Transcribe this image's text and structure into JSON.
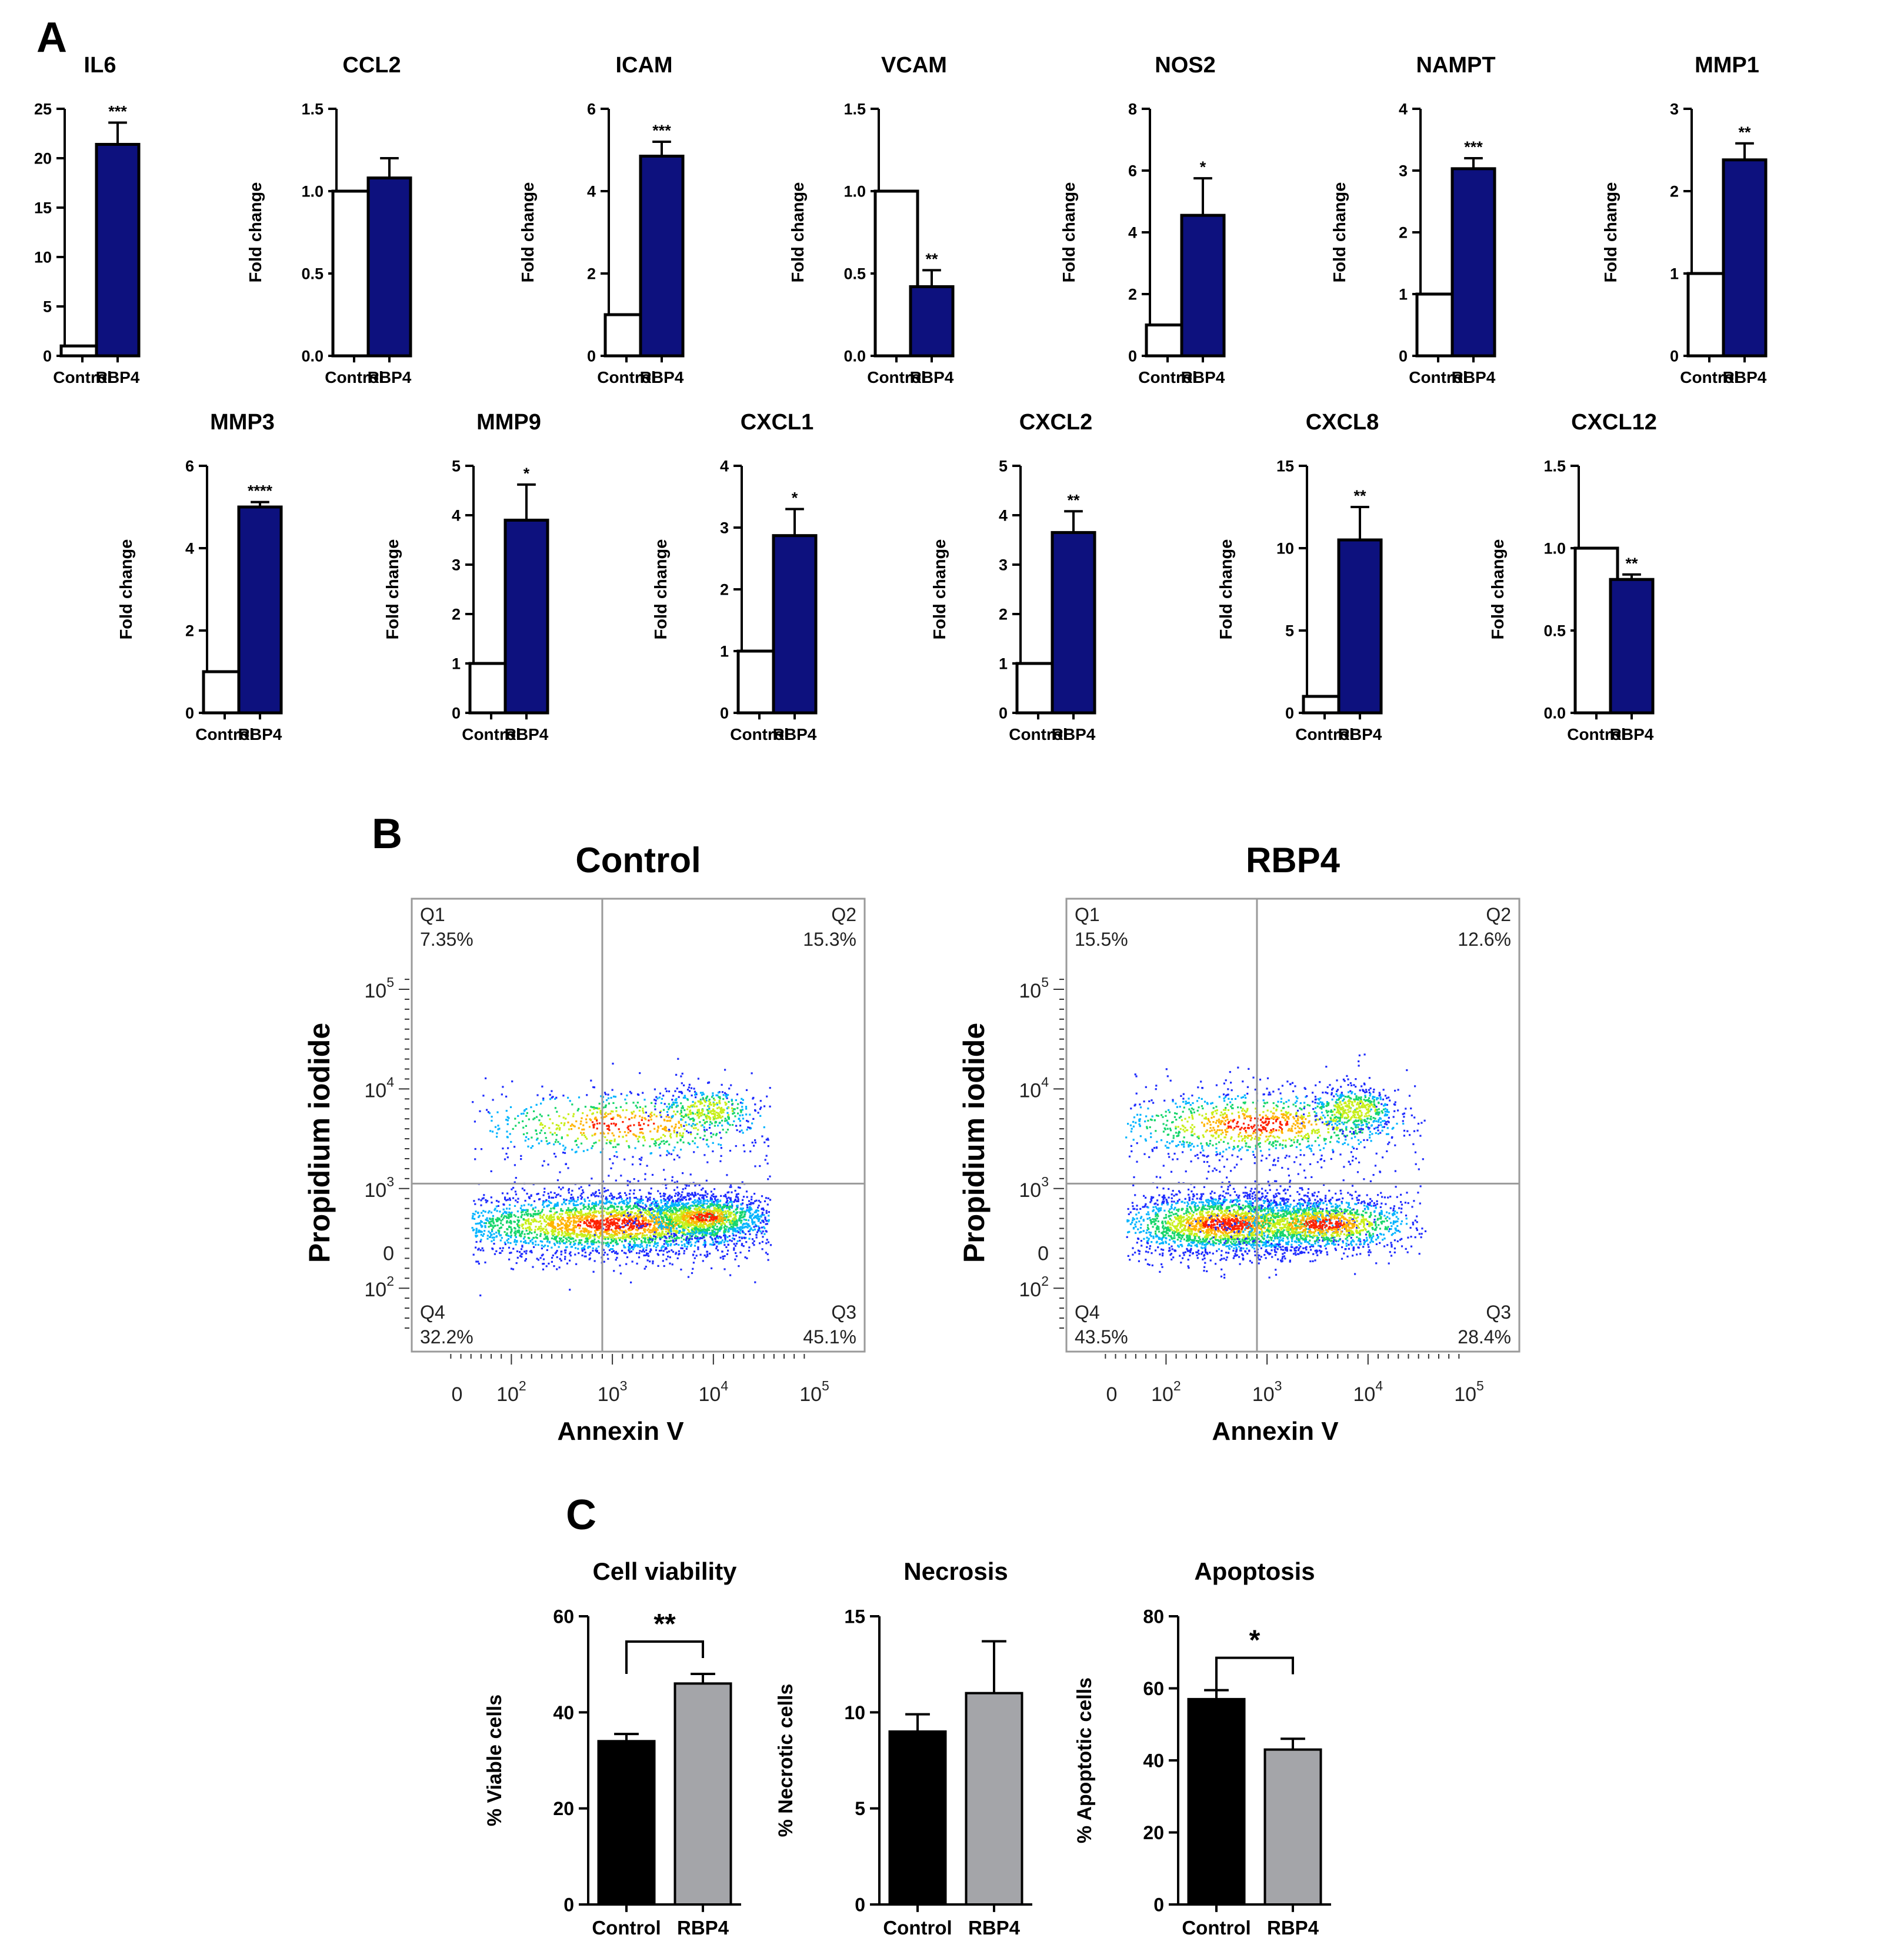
{
  "panel_labels": {
    "a": "A",
    "b": "B",
    "c": "C"
  },
  "colors": {
    "rbp4_fill": "#0d117e",
    "control_fill": "#ffffff",
    "viability_control": "#000000",
    "viability_rbp4": "#a4a5a9",
    "axis": "#000000",
    "gate": "#9a9a9a"
  },
  "chart_data": [
    {
      "type": "bar",
      "title": "IL6",
      "ylabel": "Fold change",
      "categories": [
        "Control",
        "RBP4"
      ],
      "values": [
        1,
        21.4
      ],
      "errors": [
        0,
        2.2
      ],
      "ylim": [
        0,
        25
      ],
      "yticks": [
        0,
        5,
        10,
        15,
        20,
        25
      ],
      "yticklabels": [
        "0",
        "5",
        "10",
        "15",
        "20",
        "25"
      ],
      "significance": "***"
    },
    {
      "type": "bar",
      "title": "CCL2",
      "ylabel": "Fold change",
      "categories": [
        "Control",
        "RBP4"
      ],
      "values": [
        1,
        1.08
      ],
      "errors": [
        0,
        0.12
      ],
      "ylim": [
        0,
        1.5
      ],
      "yticks": [
        0,
        0.5,
        1,
        1.5
      ],
      "yticklabels": [
        "0.0",
        "0.5",
        "1.0",
        "1.5"
      ],
      "significance": ""
    },
    {
      "type": "bar",
      "title": "ICAM",
      "ylabel": "Fold change",
      "categories": [
        "Control",
        "RBP4"
      ],
      "values": [
        1,
        4.85
      ],
      "errors": [
        0,
        0.35
      ],
      "ylim": [
        0,
        6
      ],
      "yticks": [
        0,
        2,
        4,
        6
      ],
      "yticklabels": [
        "0",
        "2",
        "4",
        "6"
      ],
      "significance": "***"
    },
    {
      "type": "bar",
      "title": "VCAM",
      "ylabel": "Fold change",
      "categories": [
        "Control",
        "RBP4"
      ],
      "values": [
        1,
        0.42
      ],
      "errors": [
        0,
        0.1
      ],
      "ylim": [
        0,
        1.5
      ],
      "yticks": [
        0,
        0.5,
        1,
        1.5
      ],
      "yticklabels": [
        "0.0",
        "0.5",
        "1.0",
        "1.5"
      ],
      "significance": "**"
    },
    {
      "type": "bar",
      "title": "NOS2",
      "ylabel": "Fold change",
      "categories": [
        "Control",
        "RBP4"
      ],
      "values": [
        1,
        4.55
      ],
      "errors": [
        0,
        1.2
      ],
      "ylim": [
        0,
        8
      ],
      "yticks": [
        0,
        2,
        4,
        6,
        8
      ],
      "yticklabels": [
        "0",
        "2",
        "4",
        "6",
        "8"
      ],
      "significance": "*"
    },
    {
      "type": "bar",
      "title": "NAMPT",
      "ylabel": "Fold change",
      "categories": [
        "Control",
        "RBP4"
      ],
      "values": [
        1,
        3.03
      ],
      "errors": [
        0,
        0.17
      ],
      "ylim": [
        0,
        4
      ],
      "yticks": [
        0,
        1,
        2,
        3,
        4
      ],
      "yticklabels": [
        "0",
        "1",
        "2",
        "3",
        "4"
      ],
      "significance": "***"
    },
    {
      "type": "bar",
      "title": "MMP1",
      "ylabel": "Fold change",
      "categories": [
        "Control",
        "RBP4"
      ],
      "values": [
        1,
        2.38
      ],
      "errors": [
        0,
        0.2
      ],
      "ylim": [
        0,
        3
      ],
      "yticks": [
        0,
        1,
        2,
        3
      ],
      "yticklabels": [
        "0",
        "1",
        "2",
        "3"
      ],
      "significance": "**"
    },
    {
      "type": "bar",
      "title": "MMP3",
      "ylabel": "Fold change",
      "categories": [
        "Control",
        "RBP4"
      ],
      "values": [
        1,
        5.0
      ],
      "errors": [
        0,
        0.12
      ],
      "ylim": [
        0,
        6
      ],
      "yticks": [
        0,
        2,
        4,
        6
      ],
      "yticklabels": [
        "0",
        "2",
        "4",
        "6"
      ],
      "significance": "****"
    },
    {
      "type": "bar",
      "title": "MMP9",
      "ylabel": "Fold change",
      "categories": [
        "Control",
        "RBP4"
      ],
      "values": [
        1,
        3.9
      ],
      "errors": [
        0,
        0.72
      ],
      "ylim": [
        0,
        5
      ],
      "yticks": [
        0,
        1,
        2,
        3,
        4,
        5
      ],
      "yticklabels": [
        "0",
        "1",
        "2",
        "3",
        "4",
        "5"
      ],
      "significance": "*"
    },
    {
      "type": "bar",
      "title": "CXCL1",
      "ylabel": "Fold change",
      "categories": [
        "Control",
        "RBP4"
      ],
      "values": [
        1,
        2.87
      ],
      "errors": [
        0,
        0.43
      ],
      "ylim": [
        0,
        4
      ],
      "yticks": [
        0,
        1,
        2,
        3,
        4
      ],
      "yticklabels": [
        "0",
        "1",
        "2",
        "3",
        "4"
      ],
      "significance": "*"
    },
    {
      "type": "bar",
      "title": "CXCL2",
      "ylabel": "Fold change",
      "categories": [
        "Control",
        "RBP4"
      ],
      "values": [
        1,
        3.65
      ],
      "errors": [
        0,
        0.43
      ],
      "ylim": [
        0,
        5
      ],
      "yticks": [
        0,
        1,
        2,
        3,
        4,
        5
      ],
      "yticklabels": [
        "0",
        "1",
        "2",
        "3",
        "4",
        "5"
      ],
      "significance": "**"
    },
    {
      "type": "bar",
      "title": "CXCL8",
      "ylabel": "Fold change",
      "categories": [
        "Control",
        "RBP4"
      ],
      "values": [
        1,
        10.5
      ],
      "errors": [
        0,
        2.0
      ],
      "ylim": [
        0,
        15
      ],
      "yticks": [
        0,
        5,
        10,
        15
      ],
      "yticklabels": [
        "0",
        "5",
        "10",
        "15"
      ],
      "significance": "**"
    },
    {
      "type": "bar",
      "title": "CXCL12",
      "ylabel": "Fold change",
      "categories": [
        "Control",
        "RBP4"
      ],
      "values": [
        1,
        0.81
      ],
      "errors": [
        0,
        0.03
      ],
      "ylim": [
        0,
        1.5
      ],
      "yticks": [
        0,
        0.5,
        1,
        1.5
      ],
      "yticklabels": [
        "0.0",
        "0.5",
        "1.0",
        "1.5"
      ],
      "significance": "**"
    },
    {
      "type": "scatter",
      "title": "Control",
      "xlabel": "Annexin V",
      "ylabel": "Propidium iodide",
      "quadrants": {
        "q1": {
          "label": "Q1",
          "value": "7.35%"
        },
        "q2": {
          "label": "Q2",
          "value": "15.3%"
        },
        "q3": {
          "label": "Q3",
          "value": "45.1%"
        },
        "q4": {
          "label": "Q4",
          "value": "32.2%"
        }
      },
      "gate_log10": {
        "x": 2.9,
        "y": 3.05
      },
      "xticks": [
        {
          "label": "0",
          "pow": ""
        },
        {
          "label": "10",
          "pow": "2"
        },
        {
          "label": "10",
          "pow": "3"
        },
        {
          "label": "10",
          "pow": "4"
        },
        {
          "label": "10",
          "pow": "5"
        }
      ],
      "yticks": [
        {
          "label": "0",
          "pow": ""
        },
        {
          "label": "10",
          "pow": "2"
        },
        {
          "label": "10",
          "pow": "3"
        },
        {
          "label": "10",
          "pow": "4"
        },
        {
          "label": "10",
          "pow": "5"
        }
      ],
      "clusters": [
        {
          "x_log10": 3.0,
          "y_log10": 2.65,
          "sx": 0.85,
          "sy": 0.17,
          "weight": 0.6
        },
        {
          "x_log10": 3.9,
          "y_log10": 2.72,
          "sx": 0.3,
          "sy": 0.12,
          "weight": 0.2
        },
        {
          "x_log10": 3.1,
          "y_log10": 3.65,
          "sx": 0.75,
          "sy": 0.2,
          "weight": 0.14
        },
        {
          "x_log10": 3.95,
          "y_log10": 3.8,
          "sx": 0.22,
          "sy": 0.12,
          "weight": 0.06
        }
      ]
    },
    {
      "type": "scatter",
      "title": "RBP4",
      "xlabel": "Annexin V",
      "ylabel": "Propidium iodide",
      "quadrants": {
        "q1": {
          "label": "Q1",
          "value": "15.5%"
        },
        "q2": {
          "label": "Q2",
          "value": "12.6%"
        },
        "q3": {
          "label": "Q3",
          "value": "28.4%"
        },
        "q4": {
          "label": "Q4",
          "value": "43.5%"
        }
      },
      "gate_log10": {
        "x": 2.9,
        "y": 3.05
      },
      "xticks": [
        {
          "label": "0",
          "pow": ""
        },
        {
          "label": "10",
          "pow": "2"
        },
        {
          "label": "10",
          "pow": "3"
        },
        {
          "label": "10",
          "pow": "4"
        },
        {
          "label": "10",
          "pow": "5"
        }
      ],
      "yticks": [
        {
          "label": "0",
          "pow": ""
        },
        {
          "label": "10",
          "pow": "2"
        },
        {
          "label": "10",
          "pow": "3"
        },
        {
          "label": "10",
          "pow": "4"
        },
        {
          "label": "10",
          "pow": "5"
        }
      ],
      "clusters": [
        {
          "x_log10": 2.6,
          "y_log10": 2.65,
          "sx": 0.55,
          "sy": 0.17,
          "weight": 0.45
        },
        {
          "x_log10": 3.55,
          "y_log10": 2.65,
          "sx": 0.45,
          "sy": 0.15,
          "weight": 0.25
        },
        {
          "x_log10": 2.9,
          "y_log10": 3.65,
          "sx": 0.75,
          "sy": 0.2,
          "weight": 0.22
        },
        {
          "x_log10": 3.85,
          "y_log10": 3.8,
          "sx": 0.2,
          "sy": 0.12,
          "weight": 0.08
        }
      ]
    },
    {
      "type": "bar",
      "title": "Cell viability",
      "ylabel": "% Viable cells",
      "categories": [
        "Control",
        "RBP4"
      ],
      "values": [
        34,
        46
      ],
      "errors": [
        1.5,
        2.0
      ],
      "ylim": [
        0,
        60
      ],
      "yticks": [
        0,
        20,
        40,
        60
      ],
      "yticklabels": [
        "0",
        "20",
        "40",
        "60"
      ],
      "significance": "**"
    },
    {
      "type": "bar",
      "title": "Necrosis",
      "ylabel": "% Necrotic cells",
      "categories": [
        "Control",
        "RBP4"
      ],
      "values": [
        9,
        11
      ],
      "errors": [
        0.9,
        2.7
      ],
      "ylim": [
        0,
        15
      ],
      "yticks": [
        0,
        5,
        10,
        15
      ],
      "yticklabels": [
        "0",
        "5",
        "10",
        "15"
      ],
      "significance": ""
    },
    {
      "type": "bar",
      "title": "Apoptosis",
      "ylabel": "% Apoptotic cells",
      "categories": [
        "Control",
        "RBP4"
      ],
      "values": [
        57,
        43
      ],
      "errors": [
        2.5,
        3.0
      ],
      "ylim": [
        0,
        80
      ],
      "yticks": [
        0,
        20,
        40,
        60,
        80
      ],
      "yticklabels": [
        "0",
        "20",
        "40",
        "60",
        "80"
      ],
      "significance": "*"
    }
  ]
}
